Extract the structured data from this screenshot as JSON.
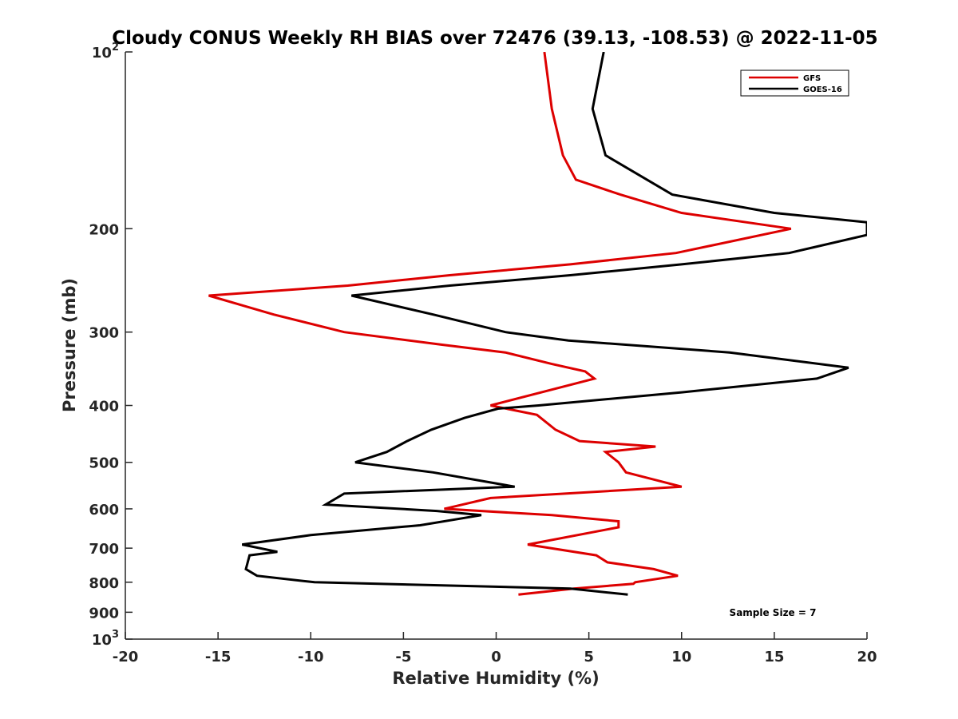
{
  "chart_data": {
    "type": "line",
    "title": "Cloudy CONUS Weekly RH BIAS over 72476 (39.13, -108.53) @ 2022-11-05",
    "xlabel": "Relative Humidity (%)",
    "ylabel": "Pressure (mb)",
    "xlim": [
      -20,
      20
    ],
    "ylim": [
      100,
      1000
    ],
    "y_scale": "log",
    "y_reversed": true,
    "x_ticks": [
      "-20",
      "-15",
      "-10",
      "-5",
      "0",
      "5",
      "10",
      "15",
      "20"
    ],
    "y_ticks": [
      {
        "value": 100,
        "label": "10",
        "sup": "2"
      },
      {
        "value": 200,
        "label": "200",
        "sup": ""
      },
      {
        "value": 300,
        "label": "300",
        "sup": ""
      },
      {
        "value": 400,
        "label": "400",
        "sup": ""
      },
      {
        "value": 500,
        "label": "500",
        "sup": ""
      },
      {
        "value": 600,
        "label": "600",
        "sup": ""
      },
      {
        "value": 700,
        "label": "700",
        "sup": ""
      },
      {
        "value": 800,
        "label": "800",
        "sup": ""
      },
      {
        "value": 900,
        "label": "900",
        "sup": ""
      },
      {
        "value": 1000,
        "label": "10",
        "sup": "3"
      }
    ],
    "grid": false,
    "legend_position": "top-right",
    "annotation": "Sample Size = 7",
    "series": [
      {
        "name": "GFS",
        "color": "#dd0000",
        "points": [
          [
            2.6,
            100
          ],
          [
            3.0,
            125
          ],
          [
            3.6,
            150
          ],
          [
            4.3,
            165
          ],
          [
            6.7,
            175
          ],
          [
            10.0,
            188
          ],
          [
            15.9,
            200
          ],
          [
            9.7,
            220
          ],
          [
            4.0,
            230
          ],
          [
            -2.5,
            240
          ],
          [
            -8.0,
            250
          ],
          [
            -15.5,
            260
          ],
          [
            -12.0,
            280
          ],
          [
            -8.2,
            300
          ],
          [
            -3.0,
            315
          ],
          [
            0.5,
            325
          ],
          [
            3.0,
            340
          ],
          [
            4.8,
            350
          ],
          [
            5.3,
            360
          ],
          [
            -0.3,
            400
          ],
          [
            2.2,
            415
          ],
          [
            3.2,
            440
          ],
          [
            4.5,
            460
          ],
          [
            8.6,
            470
          ],
          [
            5.9,
            480
          ],
          [
            6.6,
            500
          ],
          [
            7.0,
            520
          ],
          [
            10.0,
            550
          ],
          [
            -0.3,
            575
          ],
          [
            -2.8,
            600
          ],
          [
            3.0,
            615
          ],
          [
            6.6,
            630
          ],
          [
            6.6,
            645
          ],
          [
            1.7,
            690
          ],
          [
            5.4,
            720
          ],
          [
            6.0,
            740
          ],
          [
            8.5,
            760
          ],
          [
            9.8,
            780
          ],
          [
            7.5,
            800
          ],
          [
            7.4,
            805
          ],
          [
            4.2,
            820
          ],
          [
            1.2,
            840
          ]
        ]
      },
      {
        "name": "GOES-16",
        "color": "#000000",
        "points": [
          [
            5.8,
            100
          ],
          [
            5.2,
            125
          ],
          [
            5.9,
            150
          ],
          [
            9.5,
            175
          ],
          [
            15.0,
            188
          ],
          [
            20.0,
            195
          ],
          [
            20.0,
            205
          ],
          [
            15.8,
            220
          ],
          [
            10.0,
            230
          ],
          [
            4.0,
            240
          ],
          [
            -2.5,
            250
          ],
          [
            -7.8,
            260
          ],
          [
            -3.4,
            280
          ],
          [
            0.5,
            300
          ],
          [
            3.9,
            310
          ],
          [
            12.6,
            325
          ],
          [
            19.0,
            345
          ],
          [
            17.3,
            360
          ],
          [
            10.0,
            380
          ],
          [
            2.3,
            400
          ],
          [
            0.1,
            405
          ],
          [
            -1.7,
            420
          ],
          [
            -3.5,
            440
          ],
          [
            -4.8,
            460
          ],
          [
            -5.9,
            480
          ],
          [
            -7.6,
            500
          ],
          [
            -3.4,
            520
          ],
          [
            1.0,
            550
          ],
          [
            -8.2,
            565
          ],
          [
            -9.2,
            590
          ],
          [
            -3.2,
            605
          ],
          [
            -0.8,
            615
          ],
          [
            -4.1,
            640
          ],
          [
            -10.0,
            665
          ],
          [
            -13.7,
            690
          ],
          [
            -11.8,
            710
          ],
          [
            -13.3,
            720
          ],
          [
            -13.5,
            760
          ],
          [
            -12.9,
            780
          ],
          [
            -9.8,
            800
          ],
          [
            4.0,
            820
          ],
          [
            7.1,
            840
          ]
        ]
      }
    ]
  }
}
